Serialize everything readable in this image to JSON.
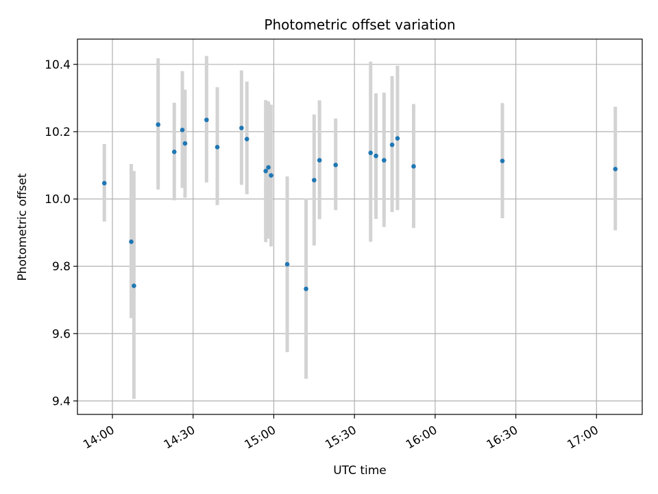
{
  "chart_data": {
    "type": "scatter",
    "title": "Photometric offset variation",
    "xlabel": "UTC time",
    "ylabel": "Photometric offset",
    "xlim": [
      "13:47",
      "17:17"
    ],
    "ylim": [
      9.36,
      10.475
    ],
    "x_ticks": [
      "14:00",
      "14:30",
      "15:00",
      "15:30",
      "16:00",
      "16:30",
      "17:00"
    ],
    "y_ticks": [
      "9.4",
      "9.6",
      "9.8",
      "10.0",
      "10.2",
      "10.4"
    ],
    "grid": true,
    "point_color": "#1f77b4",
    "errorbar_color": "#d3d3d3",
    "points": [
      {
        "x": "13:57",
        "y": 10.047,
        "low": 9.933,
        "high": 10.163
      },
      {
        "x": "14:07",
        "y": 9.873,
        "low": 9.646,
        "high": 10.104
      },
      {
        "x": "14:08",
        "y": 9.742,
        "low": 9.406,
        "high": 10.083
      },
      {
        "x": "14:17",
        "y": 10.221,
        "low": 10.028,
        "high": 10.418
      },
      {
        "x": "14:23",
        "y": 10.14,
        "low": 9.996,
        "high": 10.286
      },
      {
        "x": "14:26",
        "y": 10.205,
        "low": 10.033,
        "high": 10.38
      },
      {
        "x": "14:27",
        "y": 10.165,
        "low": 10.004,
        "high": 10.325
      },
      {
        "x": "14:35",
        "y": 10.235,
        "low": 10.049,
        "high": 10.425
      },
      {
        "x": "14:39",
        "y": 10.154,
        "low": 9.982,
        "high": 10.332
      },
      {
        "x": "14:48",
        "y": 10.211,
        "low": 10.042,
        "high": 10.382
      },
      {
        "x": "14:50",
        "y": 10.178,
        "low": 10.014,
        "high": 10.349
      },
      {
        "x": "14:57",
        "y": 10.083,
        "low": 9.872,
        "high": 10.294
      },
      {
        "x": "14:58",
        "y": 10.094,
        "low": 9.882,
        "high": 10.29
      },
      {
        "x": "14:59",
        "y": 10.07,
        "low": 9.859,
        "high": 10.28
      },
      {
        "x": "15:05",
        "y": 9.806,
        "low": 9.545,
        "high": 10.067
      },
      {
        "x": "15:12",
        "y": 9.733,
        "low": 9.466,
        "high": 10.001
      },
      {
        "x": "15:15",
        "y": 10.056,
        "low": 9.862,
        "high": 10.251
      },
      {
        "x": "15:17",
        "y": 10.115,
        "low": 9.94,
        "high": 10.293
      },
      {
        "x": "15:23",
        "y": 10.101,
        "low": 9.967,
        "high": 10.239
      },
      {
        "x": "15:36",
        "y": 10.137,
        "low": 9.873,
        "high": 10.408
      },
      {
        "x": "15:38",
        "y": 10.128,
        "low": 9.941,
        "high": 10.314
      },
      {
        "x": "15:41",
        "y": 10.115,
        "low": 9.917,
        "high": 10.316
      },
      {
        "x": "15:44",
        "y": 10.161,
        "low": 9.961,
        "high": 10.365
      },
      {
        "x": "15:46",
        "y": 10.18,
        "low": 9.967,
        "high": 10.396
      },
      {
        "x": "15:52",
        "y": 10.097,
        "low": 9.914,
        "high": 10.282
      },
      {
        "x": "16:25",
        "y": 10.113,
        "low": 9.943,
        "high": 10.285
      },
      {
        "x": "17:07",
        "y": 10.089,
        "low": 9.907,
        "high": 10.274
      }
    ]
  }
}
